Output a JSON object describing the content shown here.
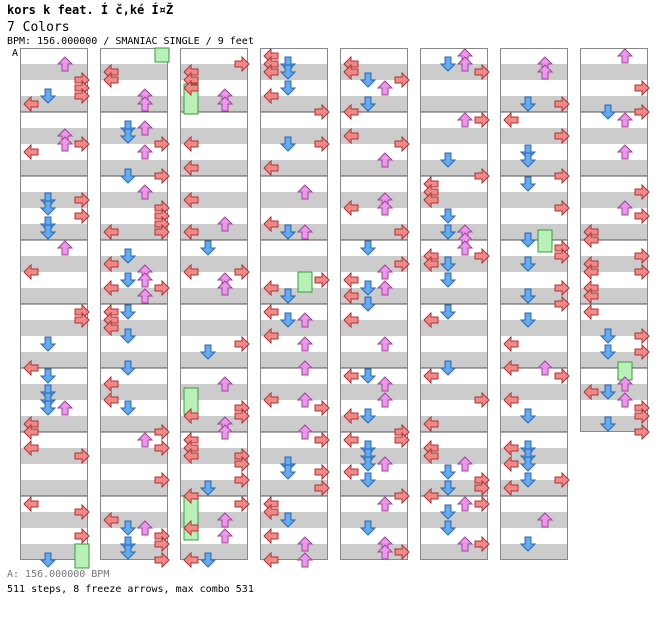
{
  "header": {
    "title": "kors k feat. Í  č‚ké  Í¤Ž",
    "subtitle": "7 Colors",
    "bpm_line": "BPM: 156.000000 / SMANIAC SINGLE / 9 feet",
    "section_marker": "A"
  },
  "footer": {
    "bpm": "A: 156.000000 BPM",
    "stats": "511 steps, 8 freeze arrows, max combo 531"
  },
  "colors": {
    "left_red": "#f08a8a",
    "down_blue": "#66aaee",
    "up_violet": "#e89ae8",
    "right_red": "#f08a8a",
    "freeze": "#b8f0b8",
    "stripe": "#cccccc",
    "measure_line": "#555555"
  },
  "icons": {
    "left": "left-arrow-icon",
    "down": "down-arrow-icon",
    "up": "up-arrow-icon",
    "right": "right-arrow-icon",
    "freeze": "freeze-arrow-icon"
  }
}
